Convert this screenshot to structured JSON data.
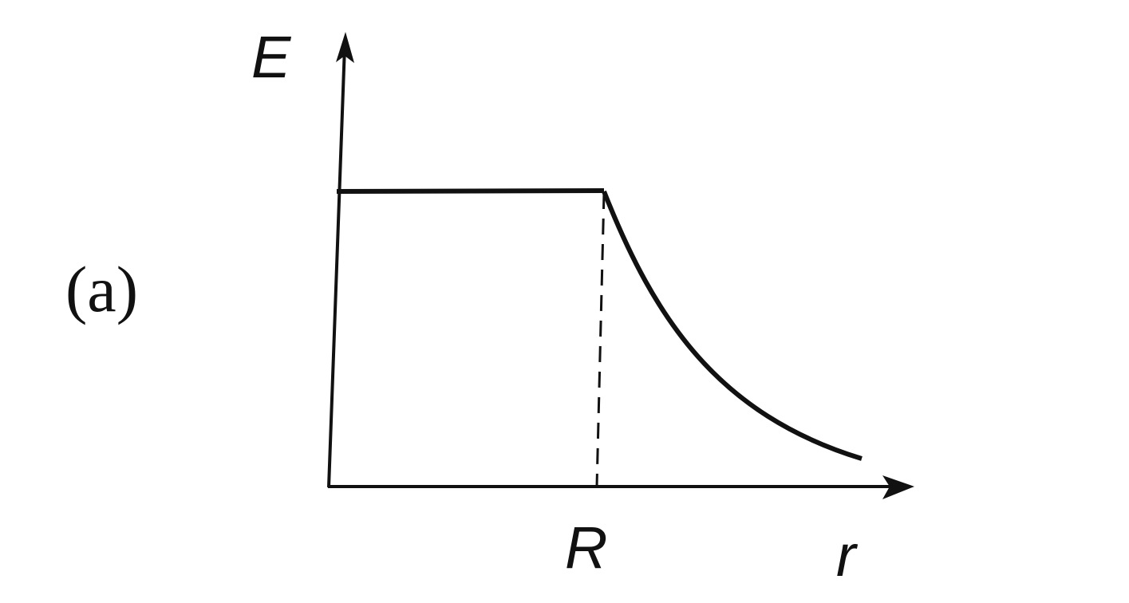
{
  "figure": {
    "part_label": "(a)",
    "y_axis_label": "E",
    "x_axis_label": "r",
    "marker_label": "R",
    "line_color": "#111111",
    "background": "#ffffff"
  },
  "chart_data": {
    "type": "line",
    "description_of_shape": "constant for r < R, decreasing for r > R",
    "xlabel": "r",
    "ylabel": "E",
    "x_ticks": [
      "R"
    ],
    "grid": false,
    "dashed_marker_at": "R"
  }
}
